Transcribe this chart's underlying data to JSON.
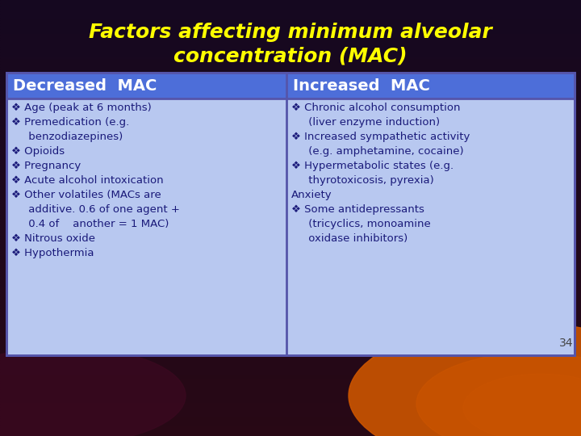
{
  "title_line1": "Factors affecting minimum alveolar",
  "title_line2": "concentration (MAC)",
  "title_color": "#FFFF00",
  "header_left": "Decreased  MAC",
  "header_right": "Increased  MAC",
  "header_bg": "#4d6ed9",
  "header_text_color": "#FFFFFF",
  "table_bg": "#b8c8f0",
  "table_border": "#5555aa",
  "left_items": [
    "❖ Age (peak at 6 months)",
    "❖ Premedication (e.g.\n     benzodiazepines)",
    "❖ Opioids",
    "❖ Pregnancy",
    "❖ Acute alcohol intoxication",
    "❖ Other volatiles (MACs are\n     additive. 0.6 of one agent +\n     0.4 of    another = 1 MAC)",
    "❖ Nitrous oxide",
    "❖ Hypothermia"
  ],
  "right_items": [
    "❖ Chronic alcohol consumption\n     (liver enzyme induction)",
    "❖ Increased sympathetic activity\n     (e.g. amphetamine, cocaine)",
    "❖ Hypermetabolic states (e.g.\n     thyrotoxicosis, pyrexia)",
    "Anxiety",
    "❖ Some antidepressants\n     (tricyclics, monoamine\n     oxidase inhibitors)"
  ],
  "body_text_color": "#1a1a7a",
  "page_number": "34",
  "page_number_color": "#444444",
  "fig_width": 7.2,
  "fig_height": 5.4,
  "dpi": 100
}
